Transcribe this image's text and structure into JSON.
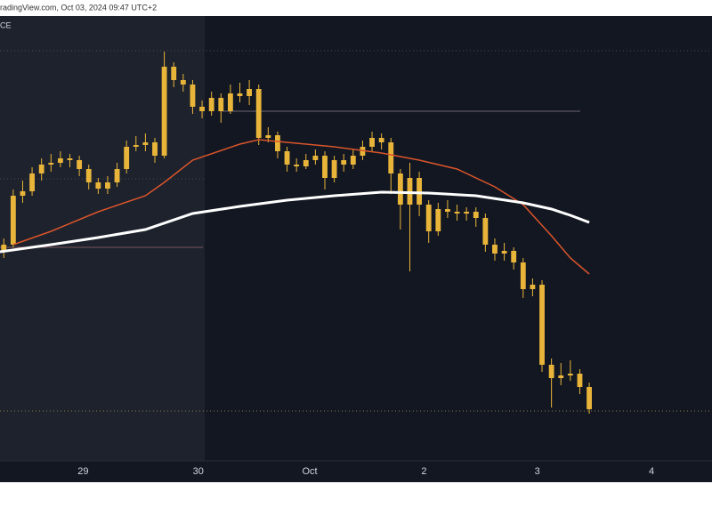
{
  "header": {
    "source": "radingView.com, Oct 03, 2024 09:47 UTC+2",
    "symbol": "CE"
  },
  "chart_data": {
    "type": "candlestick",
    "open": [
      47,
      48.6,
      59.6,
      60.6,
      64.6,
      66.6,
      67,
      68,
      67.6,
      65.6,
      62.6,
      61.2,
      62.6,
      65.6,
      70.6,
      71,
      71.6,
      68.6,
      88.6,
      85.6,
      84.6,
      79.6,
      78.6,
      81.6,
      78.6,
      82.6,
      82,
      83.6,
      72.6,
      73.2,
      69.6,
      66.6,
      66.2,
      67.6,
      68.6,
      63.6,
      67.6,
      66.6,
      68.6,
      70.6,
      72.6,
      71.6,
      64.6,
      57.6,
      63.6,
      57.6,
      51.6,
      56.6,
      56,
      55.6,
      56,
      54.6,
      48.6,
      46.6,
      47.2,
      44.6,
      38.6,
      39.6,
      21.6,
      18.6,
      19.2,
      19.6,
      16.6
    ],
    "high": [
      50,
      61,
      63,
      66,
      68,
      69,
      69.6,
      69,
      68.6,
      66.6,
      63.6,
      64,
      67,
      72,
      73,
      73.6,
      72.6,
      92,
      89.6,
      87,
      85.6,
      81,
      83,
      82.6,
      84.6,
      85,
      85.6,
      84.6,
      75,
      74,
      70.6,
      68,
      69,
      70,
      69.6,
      68.6,
      69,
      70,
      72,
      74,
      73.6,
      72.6,
      65.6,
      67,
      65,
      58.6,
      58,
      58.6,
      57.6,
      57,
      57,
      55.6,
      50,
      49,
      48,
      45.6,
      41,
      40.6,
      23,
      22,
      22.6,
      20.6,
      17.6
    ],
    "low": [
      45.6,
      48,
      58,
      59.6,
      63,
      65,
      66,
      66,
      64,
      61,
      60,
      60,
      61.6,
      64.6,
      69.6,
      69.6,
      67,
      68,
      84,
      83,
      78,
      77,
      77.6,
      76,
      78,
      80.6,
      80,
      71,
      71.6,
      68,
      65,
      65,
      65.6,
      66.6,
      61,
      62.6,
      65,
      65.6,
      67.6,
      69.6,
      70,
      60,
      52,
      42.6,
      55,
      49,
      50.6,
      54.6,
      54,
      54,
      52.6,
      47,
      45,
      45,
      43,
      36.6,
      37,
      20,
      12,
      17,
      18,
      15,
      10.6
    ],
    "close": [
      48.6,
      59.6,
      60.6,
      64.6,
      66.6,
      67,
      68,
      67.6,
      65.6,
      62.6,
      61.2,
      62.6,
      65.6,
      70.6,
      71,
      71.6,
      68.6,
      88.6,
      85.6,
      84.6,
      79.6,
      78.6,
      81.6,
      78.6,
      82.6,
      82,
      83.6,
      72.6,
      73.2,
      69.6,
      66.6,
      66.2,
      67.6,
      68.6,
      63.6,
      67.6,
      66.6,
      68.6,
      70.6,
      72.6,
      71.6,
      64.6,
      57.6,
      63.6,
      57.6,
      51.6,
      56.6,
      56,
      55.6,
      56,
      54.6,
      48.6,
      46.6,
      47.2,
      44.6,
      38.6,
      39.6,
      21.6,
      18.6,
      19.2,
      19.6,
      16.6,
      11.6
    ],
    "candle_color": "#e8b53a",
    "lines": [
      {
        "color": "#d9552b",
        "width": 1.5,
        "x": [
          1,
          5,
          10,
          15,
          17,
          20,
          25,
          27,
          30,
          35,
          40,
          44,
          48,
          52,
          55,
          58,
          60,
          62
        ],
        "values": [
          48.6,
          51.6,
          56,
          59.6,
          62.6,
          67.6,
          71.2,
          72.2,
          71.6,
          70.6,
          69.2,
          67.6,
          65.6,
          61.6,
          57.6,
          50.6,
          45.6,
          42
        ]
      },
      {
        "color": "#ffffff",
        "width": 3,
        "x": [
          -0.4,
          5,
          10,
          15,
          20,
          25,
          30,
          35,
          40,
          45,
          50,
          55,
          58,
          60,
          62
        ],
        "values": [
          47,
          48.6,
          50.2,
          52,
          55.6,
          57.2,
          58.6,
          59.6,
          60.4,
          60.2,
          59.6,
          58,
          56.6,
          55.2,
          53.6
        ]
      }
    ],
    "xlim": [
      -0.4,
      75
    ],
    "ylim": [
      0,
      100
    ],
    "xticks": [
      {
        "value": 8.4,
        "label": "29"
      },
      {
        "value": 20.6,
        "label": "30"
      },
      {
        "value": 32.4,
        "label": "Oct"
      },
      {
        "value": 44.5,
        "label": "2"
      },
      {
        "value": 56.5,
        "label": "3"
      },
      {
        "value": 68.6,
        "label": "4"
      }
    ]
  }
}
